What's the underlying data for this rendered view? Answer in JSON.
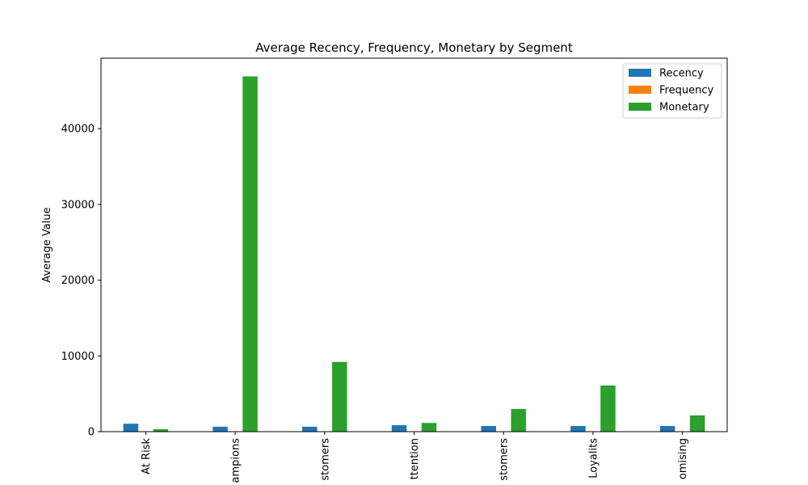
{
  "chart_data": {
    "type": "bar",
    "title": "Average Recency, Frequency, Monetary by Segment",
    "xlabel": "",
    "ylabel": "Average Value",
    "ylim": [
      0,
      49300
    ],
    "yticks": [
      0,
      10000,
      20000,
      30000,
      40000
    ],
    "ytick_labels": [
      "0",
      "10000",
      "20000",
      "30000",
      "40000"
    ],
    "grid": false,
    "legend_position": "top-right",
    "categories": [
      "At Risk",
      "Champions",
      "Customers",
      "Attention",
      "Customers",
      "Loyalits",
      "Promising"
    ],
    "category_labels_visible": [
      "At Risk",
      "ampions",
      "stomers",
      "ttention",
      "stomers",
      "Loyalits",
      "omising"
    ],
    "series": [
      {
        "name": "Recency",
        "color": "#1f77b4",
        "values": [
          1050,
          650,
          650,
          850,
          750,
          750,
          750
        ]
      },
      {
        "name": "Frequency",
        "color": "#ff7f0e",
        "values": [
          5,
          30,
          12,
          6,
          9,
          20,
          4
        ]
      },
      {
        "name": "Monetary",
        "color": "#2ca02c",
        "values": [
          320,
          46900,
          9200,
          1150,
          3000,
          6100,
          2150
        ]
      }
    ]
  }
}
